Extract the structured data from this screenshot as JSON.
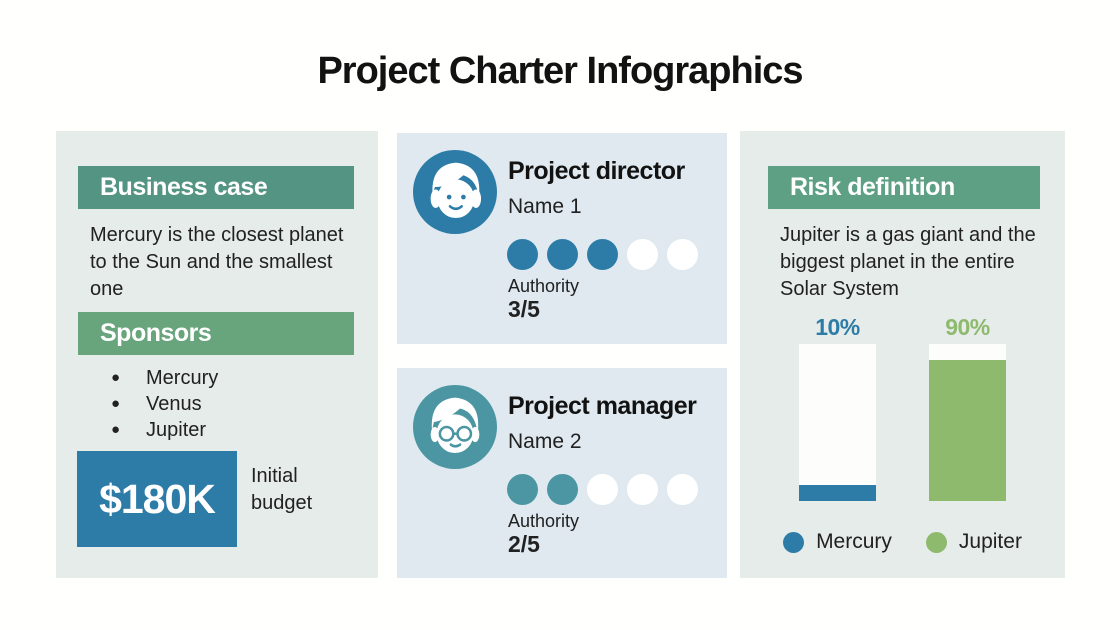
{
  "title": "Project Charter Infographics",
  "colors": {
    "green-business": "#539482",
    "green-sponsors": "#68a47c",
    "green-risk": "#5da083",
    "blue": "#2d7ca8",
    "teal": "#4b96a2",
    "chart-green": "#8eba6e",
    "panel-bg": "#e6ece9",
    "card-bg": "#dfe9ef"
  },
  "business_case": {
    "header": "Business case",
    "text": "Mercury is the closest planet to the Sun and the smallest one"
  },
  "sponsors": {
    "header": "Sponsors",
    "items": [
      "Mercury",
      "Venus",
      "Jupiter"
    ],
    "budget_value": "$180K",
    "budget_label": "Initial budget"
  },
  "people": [
    {
      "role": "Project director",
      "name": "Name 1",
      "avatar": "woman-avatar-icon",
      "rating": 3,
      "rating_max": 5,
      "authority_label": "Authority",
      "authority_value": "3/5"
    },
    {
      "role": "Project manager",
      "name": "Name 2",
      "avatar": "person-glasses-avatar-icon",
      "rating": 2,
      "rating_max": 5,
      "authority_label": "Authority",
      "authority_value": "2/5"
    }
  ],
  "risk": {
    "header": "Risk definition",
    "text": "Jupiter is a gas giant and the biggest planet in the entire Solar System"
  },
  "chart_data": {
    "type": "bar",
    "categories": [
      "Mercury",
      "Jupiter"
    ],
    "values": [
      10,
      90
    ],
    "value_labels": [
      "10%",
      "90%"
    ],
    "colors": [
      "#2d7ca8",
      "#8eba6e"
    ],
    "ylim": [
      0,
      100
    ],
    "grid": false,
    "legend": [
      "Mercury",
      "Jupiter"
    ],
    "legend_position": "bottom",
    "title": "Risk definition"
  }
}
